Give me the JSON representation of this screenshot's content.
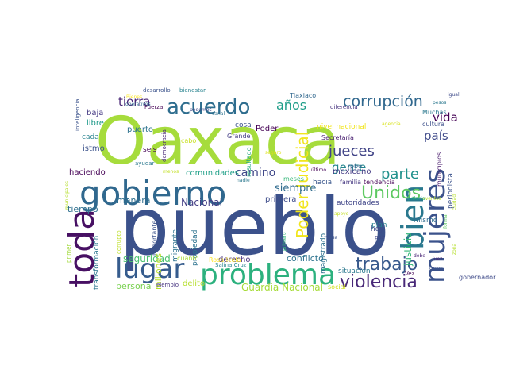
{
  "palette": {
    "dark_purple": "#440154",
    "indigo": "#3e4a89",
    "blue": "#31688e",
    "teal": "#26828e",
    "green_teal": "#1f9e89",
    "green": "#35b779",
    "lime": "#6ece58",
    "yellow_green": "#b5de2b",
    "yellow": "#dde318"
  },
  "words": [
    {
      "text": "pueblo",
      "color": "#3b518b",
      "rotate": 0
    },
    {
      "text": "Oaxaca",
      "color": "#a6dc3c",
      "rotate": 0
    },
    {
      "text": "gobierno",
      "color": "#30688e",
      "rotate": 0
    },
    {
      "text": "toda",
      "color": "#471063",
      "rotate": -90
    },
    {
      "text": "problema",
      "color": "#2cb17e",
      "rotate": 0
    },
    {
      "text": "lugar",
      "color": "#365c8d",
      "rotate": 0
    },
    {
      "text": "mujeres",
      "color": "#3b528b",
      "rotate": -90
    },
    {
      "text": "bien",
      "color": "#2a788e",
      "rotate": -90
    },
    {
      "text": "acuerdo",
      "color": "#2e6d8e",
      "rotate": 0
    },
    {
      "text": "corrupción",
      "color": "#31688e",
      "rotate": 0
    },
    {
      "text": "Unidos",
      "color": "#5ec962",
      "rotate": 0
    },
    {
      "text": "Poder Judicial",
      "color": "#f1e51d",
      "rotate": -90
    },
    {
      "text": "violencia",
      "color": "#482878",
      "rotate": 0
    },
    {
      "text": "trabajo",
      "color": "#38598c",
      "rotate": 0
    },
    {
      "text": "jueces",
      "color": "#414487",
      "rotate": 0
    },
    {
      "text": "parte",
      "color": "#21918c",
      "rotate": 0
    },
    {
      "text": "años",
      "color": "#1f9e89",
      "rotate": 0
    },
    {
      "text": "tierra",
      "color": "#482475",
      "rotate": 0
    },
    {
      "text": "país",
      "color": "#3e4989",
      "rotate": 0
    },
    {
      "text": "gente",
      "color": "#25858e",
      "rotate": 0
    },
    {
      "text": "vida",
      "color": "#440154",
      "rotate": 0
    },
    {
      "text": "camino",
      "color": "#3f4788",
      "rotate": 0
    },
    {
      "text": "siempre",
      "color": "#2f6b8e",
      "rotate": 0
    },
    {
      "text": "justicia",
      "color": "#35b779",
      "rotate": -90
    },
    {
      "text": "Guardia Nacional",
      "color": "#a5db36",
      "rotate": 0
    },
    {
      "text": "conflicto",
      "color": "#2c728e",
      "rotate": 0
    },
    {
      "text": "seguridad",
      "color": "#4ac16d",
      "rotate": 0
    },
    {
      "text": "persona",
      "color": "#7ad151",
      "rotate": 0
    },
    {
      "text": "Nacional",
      "color": "#433e85",
      "rotate": 0
    },
    {
      "text": "millones",
      "color": "#b8de29",
      "rotate": -90
    },
    {
      "text": "comunidades",
      "color": "#1fa088",
      "rotate": 0
    },
    {
      "text": "haciendo",
      "color": "#440154",
      "rotate": 0
    },
    {
      "text": "manera",
      "color": "#2e6e8e",
      "rotate": 0
    },
    {
      "text": "tiempo",
      "color": "#2e6f8e",
      "rotate": 0
    },
    {
      "text": "mexicano",
      "color": "#443a83",
      "rotate": 0
    },
    {
      "text": "primera",
      "color": "#3e4c8a",
      "rotate": 0
    },
    {
      "text": "derecho",
      "color": "#472f7d",
      "rotate": 0
    },
    {
      "text": "Poder",
      "color": "#440154",
      "rotate": 0
    },
    {
      "text": "puerto",
      "color": "#2c728e",
      "rotate": 0
    },
    {
      "text": "baja",
      "color": "#443983",
      "rotate": 0
    },
    {
      "text": "libre",
      "color": "#1f9a8a",
      "rotate": 0
    },
    {
      "text": "cada",
      "color": "#26828e",
      "rotate": 0
    },
    {
      "text": "istmo",
      "color": "#3b528b",
      "rotate": 0
    },
    {
      "text": "seis",
      "color": "#440154",
      "rotate": 0
    },
    {
      "text": "cosa",
      "color": "#3b528b",
      "rotate": 0
    },
    {
      "text": "Grande",
      "color": "#433d84",
      "rotate": 0
    },
    {
      "text": "cabo",
      "color": "#c8e020",
      "rotate": 0
    },
    {
      "text": "nivel nacional",
      "color": "#f1e51d",
      "rotate": 0
    },
    {
      "text": "Secretaría",
      "color": "#481f70",
      "rotate": 0
    },
    {
      "text": "familia",
      "color": "#453781",
      "rotate": 0
    },
    {
      "text": "tendencia",
      "color": "#440154",
      "rotate": 0
    },
    {
      "text": "hacia",
      "color": "#39568c",
      "rotate": 0
    },
    {
      "text": "autoridades",
      "color": "#404688",
      "rotate": 0
    },
    {
      "text": "municipios",
      "color": "#481a6c",
      "rotate": -90
    },
    {
      "text": "cultura",
      "color": "#3c4f8a",
      "rotate": 0
    },
    {
      "text": "Muchas",
      "color": "#2a788e",
      "rotate": 0
    },
    {
      "text": "diferencia",
      "color": "#46327e",
      "rotate": 0
    },
    {
      "text": "Tlaxiaco",
      "color": "#31688e",
      "rotate": 0
    },
    {
      "text": "importante",
      "color": "#3b528b",
      "rotate": -90
    },
    {
      "text": "migrante",
      "color": "#2c718e",
      "rotate": -90
    },
    {
      "text": "propiedad",
      "color": "#2c728e",
      "rotate": -90
    },
    {
      "text": "cuanto",
      "color": "#a8db34",
      "rotate": 0
    },
    {
      "text": "Rosa Icela",
      "color": "#fde725",
      "rotate": 0
    },
    {
      "text": "delito",
      "color": "#b5de2b",
      "rotate": 0
    },
    {
      "text": "Salina Cruz",
      "color": "#25838e",
      "rotate": 0
    },
    {
      "text": "magistrado",
      "color": "#2d708e",
      "rotate": -90
    },
    {
      "text": "plan",
      "color": "#26828e",
      "rotate": 0
    },
    {
      "text": "hoy",
      "color": "#3e4c8a",
      "rotate": 0
    },
    {
      "text": "paz",
      "color": "#3f4889",
      "rotate": 0
    },
    {
      "text": "robo",
      "color": "#32658e",
      "rotate": 0
    },
    {
      "text": "mismo",
      "color": "#2f6c8e",
      "rotate": 0
    },
    {
      "text": "situación",
      "color": "#2a788e",
      "rotate": 0
    },
    {
      "text": "gobernador",
      "color": "#3e4a89",
      "rotate": 0
    },
    {
      "text": "forma",
      "color": "#5ec962",
      "rotate": -90
    },
    {
      "text": "periodista",
      "color": "#3b528b",
      "rotate": -90
    },
    {
      "text": "transformación",
      "color": "#2a768e",
      "rotate": -90
    },
    {
      "text": "corrupto",
      "color": "#bddf26",
      "rotate": -90
    },
    {
      "text": "primer",
      "color": "#a0da39",
      "rotate": -90
    },
    {
      "text": "ejemplo",
      "color": "#46337f",
      "rotate": 0
    },
    {
      "text": "social",
      "color": "#d2e21b",
      "rotate": 0
    },
    {
      "text": "resultado",
      "color": "#27ad81",
      "rotate": -90
    },
    {
      "text": "inteligencia",
      "color": "#3b528b",
      "rotate": -90
    },
    {
      "text": "desarrollo",
      "color": "#3b528b",
      "rotate": 0
    },
    {
      "text": "bienestar",
      "color": "#26828e",
      "rotate": 0
    },
    {
      "text": "Fuerza",
      "color": "#440154",
      "rotate": 0
    },
    {
      "text": "podemos",
      "color": "#3e4a89",
      "rotate": 0
    },
    {
      "text": "canal",
      "color": "#2c728e",
      "rotate": 0
    },
    {
      "text": "operativos",
      "color": "#31688e",
      "rotate": 0
    },
    {
      "text": "democracia",
      "color": "#482475",
      "rotate": -90
    },
    {
      "text": "ayudar",
      "color": "#2a788e",
      "rotate": 0
    },
    {
      "text": "meses",
      "color": "#35b779",
      "rotate": 0
    },
    {
      "text": "último",
      "color": "#440154",
      "rotate": 0
    },
    {
      "text": "apoyo",
      "color": "#c2df23",
      "rotate": 0
    },
    {
      "text": "eventos",
      "color": "#b5de2b",
      "rotate": 0
    },
    {
      "text": "igual",
      "color": "#3e4a89",
      "rotate": 0
    },
    {
      "text": "pesos",
      "color": "#2a788e",
      "rotate": 0
    },
    {
      "text": "debe",
      "color": "#482475",
      "rotate": 0
    },
    {
      "text": "Vez",
      "color": "#440154",
      "rotate": 0
    },
    {
      "text": "juez",
      "color": "#482475",
      "rotate": 0
    },
    {
      "text": "cargo",
      "color": "#3b528b",
      "rotate": 0
    },
    {
      "text": "mesa",
      "color": "#3b528b",
      "rotate": 0
    },
    {
      "text": "nadie",
      "color": "#2a788e",
      "rotate": 0
    },
    {
      "text": "primero",
      "color": "#35b779",
      "rotate": -90
    },
    {
      "text": "municipales",
      "color": "#b5de2b",
      "rotate": -90
    },
    {
      "text": "Bienes",
      "color": "#fde725",
      "rotate": 0
    },
    {
      "text": "seguro",
      "color": "#dde318",
      "rotate": 0
    },
    {
      "text": "menos",
      "color": "#c2df23",
      "rotate": 0
    },
    {
      "text": "agencia",
      "color": "#d8e219",
      "rotate": 0
    },
    {
      "text": "palacio",
      "color": "#1fa088",
      "rotate": 0
    },
    {
      "text": "zona",
      "color": "#b5de2b",
      "rotate": -90
    },
    {
      "text": "ciudad",
      "color": "#b5de2b",
      "rotate": -90
    }
  ]
}
